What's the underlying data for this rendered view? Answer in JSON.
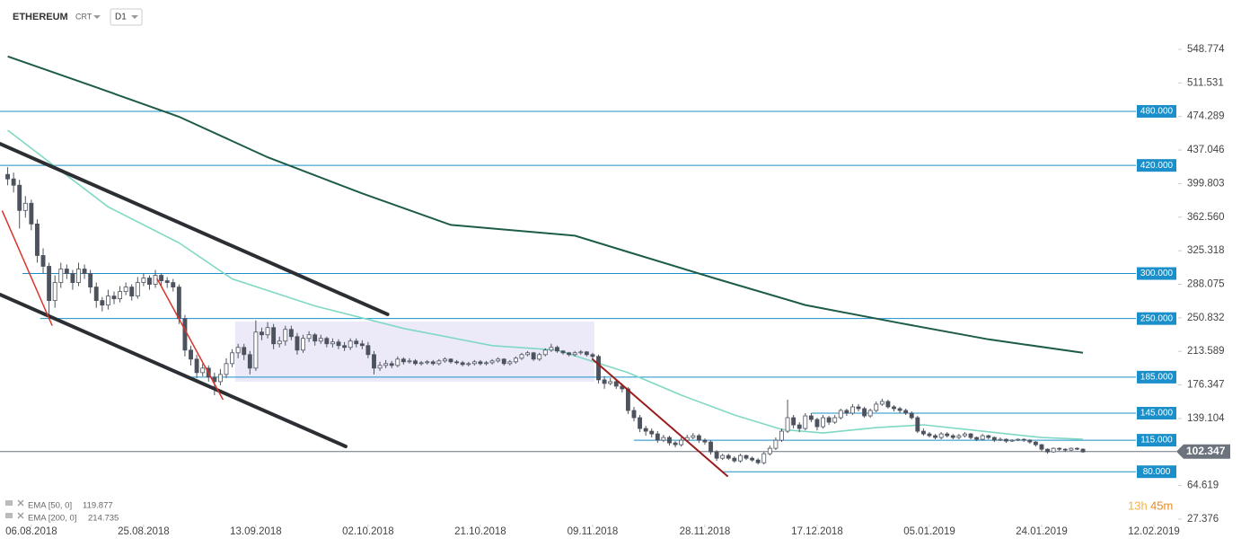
{
  "chart_data": {
    "type": "candlestick",
    "title": "ETHEREUM",
    "instrument_mode": "CRT",
    "timeframe": "D1",
    "ylim": [
      15.4,
      603.6
    ],
    "yticks": [
      548.774,
      511.531,
      474.289,
      437.046,
      399.803,
      {
        "value": 362.56,
        "label": "362.560"
      },
      325.318,
      288.075,
      250.832,
      213.589,
      176.347,
      139.104,
      64.619,
      27.376
    ],
    "xlim": [
      -1.3,
      197.8
    ],
    "xticks": [
      {
        "value": 4,
        "label": "06.08.2018"
      },
      {
        "value": 23,
        "label": "25.08.2018"
      },
      {
        "value": 42,
        "label": "13.09.2018"
      },
      {
        "value": 61,
        "label": "02.10.2018"
      },
      {
        "value": 80,
        "label": "21.10.2018"
      },
      {
        "value": 99,
        "label": "09.11.2018"
      },
      {
        "value": 118,
        "label": "28.11.2018"
      },
      {
        "value": 137,
        "label": "17.12.2018"
      },
      {
        "value": 156,
        "label": "05.01.2019"
      },
      {
        "value": 175,
        "label": "24.01.2019"
      },
      {
        "value": 194,
        "label": "12.02.2019"
      }
    ],
    "up_color": "#ffffff",
    "down_color": "#4d535e",
    "candles": [
      [
        410,
        418,
        398,
        405
      ],
      [
        405,
        412,
        390,
        398
      ],
      [
        398,
        404,
        350,
        370
      ],
      [
        370,
        386,
        362,
        378
      ],
      [
        378,
        382,
        348,
        355
      ],
      [
        355,
        360,
        312,
        320
      ],
      [
        320,
        328,
        300,
        308
      ],
      [
        308,
        312,
        250,
        270
      ],
      [
        270,
        298,
        262,
        290
      ],
      [
        290,
        312,
        284,
        305
      ],
      [
        305,
        310,
        294,
        300
      ],
      [
        300,
        304,
        282,
        290
      ],
      [
        290,
        312,
        286,
        305
      ],
      [
        305,
        310,
        294,
        300
      ],
      [
        300,
        304,
        278,
        285
      ],
      [
        285,
        290,
        262,
        270
      ],
      [
        270,
        274,
        258,
        265
      ],
      [
        265,
        282,
        260,
        275
      ],
      [
        275,
        280,
        266,
        272
      ],
      [
        272,
        286,
        268,
        280
      ],
      [
        280,
        290,
        276,
        285
      ],
      [
        285,
        288,
        270,
        275
      ],
      [
        275,
        296,
        272,
        290
      ],
      [
        290,
        300,
        286,
        295
      ],
      [
        295,
        298,
        282,
        288
      ],
      [
        288,
        304,
        284,
        298
      ],
      [
        298,
        300,
        286,
        292
      ],
      [
        292,
        296,
        284,
        290
      ],
      [
        290,
        294,
        280,
        285
      ],
      [
        285,
        288,
        244,
        250
      ],
      [
        250,
        254,
        208,
        215
      ],
      [
        215,
        220,
        198,
        205
      ],
      [
        205,
        210,
        184,
        190
      ],
      [
        190,
        200,
        186,
        195
      ],
      [
        195,
        198,
        180,
        185
      ],
      [
        185,
        190,
        165,
        180
      ],
      [
        180,
        194,
        176,
        188
      ],
      [
        188,
        206,
        184,
        200
      ],
      [
        200,
        216,
        196,
        212
      ],
      [
        212,
        222,
        206,
        218
      ],
      [
        218,
        222,
        204,
        210
      ],
      [
        210,
        214,
        188,
        195
      ],
      [
        195,
        248,
        192,
        235
      ],
      [
        235,
        240,
        226,
        232
      ],
      [
        232,
        246,
        228,
        240
      ],
      [
        240,
        244,
        216,
        222
      ],
      [
        222,
        230,
        218,
        225
      ],
      [
        225,
        242,
        220,
        238
      ],
      [
        238,
        242,
        226,
        230
      ],
      [
        230,
        234,
        210,
        215
      ],
      [
        215,
        232,
        212,
        228
      ],
      [
        228,
        236,
        224,
        232
      ],
      [
        232,
        234,
        220,
        225
      ],
      [
        225,
        232,
        222,
        228
      ],
      [
        228,
        230,
        218,
        222
      ],
      [
        222,
        228,
        218,
        224
      ],
      [
        224,
        227,
        216,
        220
      ],
      [
        220,
        224,
        214,
        218
      ],
      [
        218,
        228,
        215,
        225
      ],
      [
        225,
        228,
        218,
        222
      ],
      [
        222,
        226,
        216,
        220
      ],
      [
        220,
        224,
        206,
        210
      ],
      [
        210,
        214,
        188,
        195
      ],
      [
        195,
        202,
        192,
        198
      ],
      [
        198,
        204,
        195,
        200
      ],
      [
        200,
        203,
        195,
        198
      ],
      [
        198,
        208,
        196,
        205
      ],
      [
        205,
        207,
        199,
        202
      ],
      [
        202,
        206,
        200,
        203
      ],
      [
        203,
        205,
        198,
        200
      ],
      [
        200,
        203,
        198,
        201
      ],
      [
        201,
        204,
        199,
        202
      ],
      [
        202,
        204,
        198,
        200
      ],
      [
        200,
        205,
        198,
        203
      ],
      [
        203,
        207,
        201,
        205
      ],
      [
        205,
        206,
        200,
        202
      ],
      [
        202,
        204,
        199,
        201
      ],
      [
        201,
        203,
        197,
        199
      ],
      [
        199,
        202,
        197,
        200
      ],
      [
        200,
        204,
        198,
        202
      ],
      [
        202,
        204,
        198,
        200
      ],
      [
        200,
        203,
        198,
        201
      ],
      [
        201,
        205,
        199,
        203
      ],
      [
        203,
        207,
        201,
        205
      ],
      [
        205,
        206,
        198,
        200
      ],
      [
        200,
        204,
        198,
        202
      ],
      [
        202,
        208,
        200,
        206
      ],
      [
        206,
        212,
        204,
        210
      ],
      [
        210,
        214,
        208,
        212
      ],
      [
        212,
        213,
        203,
        205
      ],
      [
        205,
        212,
        203,
        210
      ],
      [
        210,
        217,
        208,
        215
      ],
      [
        215,
        222,
        213,
        218
      ],
      [
        218,
        220,
        212,
        214
      ],
      [
        214,
        215,
        210,
        212
      ],
      [
        212,
        213,
        208,
        210
      ],
      [
        210,
        214,
        208,
        212
      ],
      [
        212,
        215,
        210,
        213
      ],
      [
        213,
        214,
        208,
        210
      ],
      [
        210,
        212,
        205,
        208
      ],
      [
        208,
        210,
        178,
        182
      ],
      [
        182,
        186,
        172,
        178
      ],
      [
        178,
        184,
        176,
        180
      ],
      [
        180,
        182,
        172,
        175
      ],
      [
        175,
        178,
        168,
        172
      ],
      [
        172,
        174,
        144,
        148
      ],
      [
        148,
        152,
        136,
        140
      ],
      [
        140,
        143,
        124,
        128
      ],
      [
        128,
        131,
        120,
        125
      ],
      [
        125,
        128,
        118,
        122
      ],
      [
        122,
        125,
        112,
        115
      ],
      [
        115,
        121,
        113,
        118
      ],
      [
        118,
        120,
        109,
        112
      ],
      [
        112,
        114,
        107,
        110
      ],
      [
        110,
        118,
        108,
        115
      ],
      [
        115,
        121,
        113,
        118
      ],
      [
        118,
        123,
        116,
        120
      ],
      [
        120,
        122,
        112,
        115
      ],
      [
        115,
        117,
        110,
        113
      ],
      [
        113,
        115,
        99,
        102
      ],
      [
        102,
        104,
        92,
        95
      ],
      [
        95,
        100,
        93,
        98
      ],
      [
        98,
        100,
        93,
        95
      ],
      [
        95,
        97,
        90,
        92
      ],
      [
        92,
        100,
        90,
        98
      ],
      [
        98,
        99,
        93,
        95
      ],
      [
        95,
        97,
        91,
        93
      ],
      [
        93,
        95,
        88,
        90
      ],
      [
        90,
        102,
        88,
        100
      ],
      [
        100,
        109,
        98,
        106
      ],
      [
        106,
        118,
        104,
        115
      ],
      [
        115,
        128,
        113,
        125
      ],
      [
        125,
        160,
        123,
        140
      ],
      [
        140,
        143,
        128,
        132
      ],
      [
        132,
        135,
        124,
        128
      ],
      [
        128,
        145,
        126,
        142
      ],
      [
        142,
        145,
        135,
        138
      ],
      [
        138,
        140,
        126,
        130
      ],
      [
        130,
        143,
        128,
        140
      ],
      [
        140,
        142,
        132,
        135
      ],
      [
        135,
        143,
        133,
        140
      ],
      [
        140,
        150,
        138,
        148
      ],
      [
        148,
        150,
        142,
        145
      ],
      [
        145,
        155,
        143,
        152
      ],
      [
        152,
        155,
        147,
        150
      ],
      [
        150,
        152,
        140,
        142
      ],
      [
        142,
        150,
        140,
        148
      ],
      [
        148,
        158,
        146,
        155
      ],
      [
        155,
        161,
        153,
        158
      ],
      [
        158,
        160,
        150,
        152
      ],
      [
        152,
        154,
        147,
        150
      ],
      [
        150,
        152,
        145,
        148
      ],
      [
        148,
        150,
        143,
        145
      ],
      [
        145,
        147,
        138,
        140
      ],
      [
        140,
        142,
        123,
        125
      ],
      [
        125,
        128,
        120,
        122
      ],
      [
        122,
        124,
        118,
        120
      ],
      [
        120,
        122,
        116,
        118
      ],
      [
        118,
        124,
        116,
        122
      ],
      [
        122,
        124,
        118,
        120
      ],
      [
        120,
        122,
        116,
        118
      ],
      [
        118,
        122,
        116,
        120
      ],
      [
        120,
        124,
        118,
        122
      ],
      [
        122,
        123,
        116,
        118
      ],
      [
        118,
        119,
        114,
        116
      ],
      [
        116,
        122,
        115,
        120
      ],
      [
        120,
        121,
        116,
        118
      ],
      [
        118,
        119,
        113,
        115
      ],
      [
        115,
        118,
        114,
        116
      ],
      [
        116,
        117,
        112,
        114
      ],
      [
        114,
        116,
        113,
        115
      ],
      [
        115,
        117,
        114,
        116
      ],
      [
        116,
        117,
        113,
        115
      ],
      [
        115,
        116,
        111,
        113
      ],
      [
        113,
        114,
        108,
        110
      ],
      [
        110,
        111,
        103,
        105
      ],
      [
        105,
        106,
        100,
        102
      ],
      [
        102,
        107,
        101,
        106
      ],
      [
        106,
        107,
        103,
        105
      ],
      [
        105,
        106,
        102,
        104
      ],
      [
        104,
        107,
        103,
        106
      ],
      [
        106,
        107,
        104,
        105
      ],
      [
        105,
        106,
        101,
        102
      ]
    ],
    "series": [
      {
        "name": "EMA [50, 0]",
        "legend_value": 119.877,
        "color": "#7fd8c4",
        "x": [
          0,
          8,
          17,
          29,
          38,
          52,
          67,
          82,
          93,
          105,
          114,
          123,
          131,
          138,
          147,
          155,
          165,
          175,
          182
        ],
        "values": [
          459,
          419,
          374,
          334,
          294,
          264,
          239,
          220,
          215,
          190,
          165,
          143,
          127,
          123,
          129,
          132,
          125,
          118,
          116
        ]
      },
      {
        "name": "EMA [200, 0]",
        "legend_value": 214.735,
        "color": "#1d5c48",
        "x": [
          0,
          14,
          29,
          44,
          60,
          75,
          96,
          105,
          120,
          135,
          151,
          166,
          182
        ],
        "values": [
          541,
          509,
          474,
          429,
          389,
          354,
          342,
          324,
          294,
          265,
          245,
          227,
          212
        ]
      }
    ],
    "levels": [
      {
        "value": 480,
        "label": "480.000",
        "start": -1.3
      },
      {
        "value": 420,
        "label": "420.000",
        "start": -1.3
      },
      {
        "value": 300,
        "label": "300.000",
        "start": 2.5
      },
      {
        "value": 250,
        "label": "250.000",
        "start": 5.5
      },
      {
        "value": 185,
        "label": "185.000",
        "start": 30
      },
      {
        "value": 145,
        "label": "145.000",
        "start": 136
      },
      {
        "value": 115,
        "label": "115.000",
        "start": 106
      },
      {
        "value": 80,
        "label": "80.000",
        "start": 121
      }
    ],
    "level_color": "#1a8fc9",
    "trendlines": [
      {
        "color": "#2b2e33",
        "width": 4,
        "x": [
          -1.3,
          64.3
        ],
        "values": [
          444,
          254.7
        ]
      },
      {
        "color": "#2b2e33",
        "width": 4,
        "x": [
          -1.3,
          57.2
        ],
        "values": [
          276.6,
          108.1
        ]
      },
      {
        "color": "#d9342b",
        "width": 1.5,
        "x": [
          -0.9,
          7.5
        ],
        "values": [
          369.3,
          242.7
        ]
      },
      {
        "color": "#d9342b",
        "width": 1.5,
        "x": [
          25.3,
          36.4
        ],
        "values": [
          294.2,
          160.6
        ]
      },
      {
        "color": "#9b1c1c",
        "width": 2,
        "x": [
          99,
          121.8
        ],
        "values": [
          204.8,
          75.2
        ]
      }
    ],
    "box": {
      "color": "#e9e6f7",
      "x": [
        38.5,
        99.3
      ],
      "values": [
        246.7,
        179.9
      ]
    },
    "last_price": 102.347,
    "timer": {
      "hours": "13h",
      "minutes": "45m"
    }
  }
}
